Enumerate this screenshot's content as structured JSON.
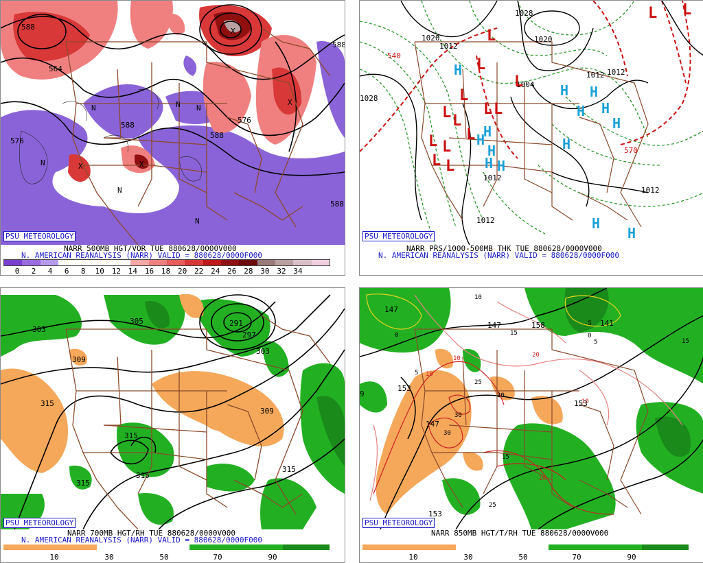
{
  "panels": {
    "p1": {
      "logo": "PSU METEOROLOGY",
      "caption1": "NARR 500MB HGT/VOR TUE 880628/0000V000",
      "caption2": "N. AMERICAN REANALYSIS (NARR) VALID = 880628/0000F000",
      "colorbar_ticks": [
        "0",
        "2",
        "4",
        "6",
        "8",
        "10",
        "12",
        "14",
        "16",
        "18",
        "20",
        "22",
        "24",
        "26",
        "28",
        "30",
        "32",
        "34"
      ],
      "colorbar_colors": [
        "#7b3fd0",
        "#9a6ae0",
        "#b69af0",
        "#ffffff",
        "#ffffff",
        "#ffffff",
        "#ffffff",
        "#f8a7a7",
        "#f08080",
        "#e85c5c",
        "#d83838",
        "#c01818",
        "#901010",
        "#6c0808",
        "#9a7a7a",
        "#b8a0a0",
        "#d8c0c8",
        "#f0d0e0"
      ],
      "height_labels": [
        "588",
        "576",
        "564",
        "588",
        "588",
        "576",
        "588",
        "588"
      ],
      "vort_labels": [
        "N",
        "N",
        "N",
        "N",
        "N",
        "N",
        "X",
        "X",
        "X",
        "X"
      ]
    },
    "p2": {
      "logo": "PSU METEOROLOGY",
      "caption1": "NARR PRS/1000-500MB THK TUE 880628/0000V000",
      "caption2": "N. AMERICAN REANALYSIS (NARR) VALID = 880628/0000F000",
      "pressure_labels": [
        "1028",
        "1020",
        "1012",
        "1020",
        "1028",
        "1012",
        "1004",
        "1012",
        "1012",
        "1012",
        "1012"
      ],
      "thickness_labels": [
        "540",
        "570"
      ],
      "low_marker": "L",
      "high_marker": "H"
    },
    "p3": {
      "logo": "PSU METEOROLOGY",
      "caption1": "NARR 700MB HGT/RH TUE 880628/0000V000",
      "caption2": "N. AMERICAN REANALYSIS (NARR) VALID = 880628/0000F000",
      "colorbar_ticks": [
        "10",
        "30",
        "50",
        "70",
        "90"
      ],
      "height_labels": [
        "303",
        "309",
        "305",
        "291",
        "297",
        "303",
        "315",
        "309",
        "315",
        "315",
        "315",
        "315"
      ]
    },
    "p4": {
      "logo": "PSU METEOROLOGY",
      "caption1": "NARR 850MB HGT/T/RH TUE 880628/0000V000",
      "colorbar_ticks": [
        "10",
        "30",
        "50",
        "70",
        "90"
      ],
      "height_labels": [
        "147",
        "147",
        "158",
        "141",
        "9",
        "153",
        "147",
        "153",
        "153"
      ],
      "temp_labels": [
        "0",
        "10",
        "-5",
        "0",
        "5",
        "15",
        "15",
        "5",
        "10",
        "25",
        "30",
        "30",
        "30",
        "20",
        "10",
        "10",
        "15",
        "20",
        "25"
      ]
    }
  },
  "colors": {
    "panel_border": "#8a8a8a",
    "logo_blue": "#1818c8",
    "state_lines": "#8b4a2b",
    "rh_green": "#22b022",
    "rh_orange": "#f5a75a",
    "low_red": "#cc1010",
    "high_cyan": "#1aa0d8"
  }
}
